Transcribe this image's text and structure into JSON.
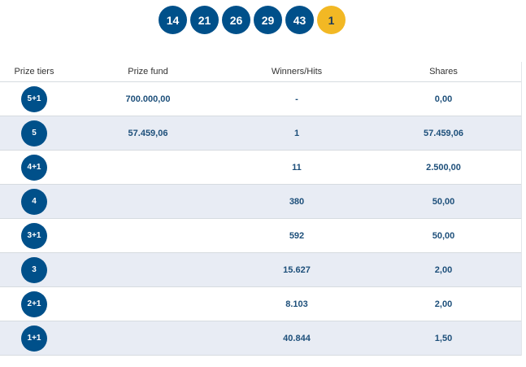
{
  "draw": {
    "numbers": [
      "14",
      "21",
      "26",
      "29",
      "43"
    ],
    "bonus": "1"
  },
  "table": {
    "headers": {
      "tier": "Prize tiers",
      "fund": "Prize fund",
      "winners": "Winners/Hits",
      "shares": "Shares"
    },
    "rows": [
      {
        "tier": "5+1",
        "fund": "700.000,00",
        "winners": "-",
        "shares": "0,00"
      },
      {
        "tier": "5",
        "fund": "57.459,06",
        "winners": "1",
        "shares": "57.459,06"
      },
      {
        "tier": "4+1",
        "fund": "",
        "winners": "11",
        "shares": "2.500,00"
      },
      {
        "tier": "4",
        "fund": "",
        "winners": "380",
        "shares": "50,00"
      },
      {
        "tier": "3+1",
        "fund": "",
        "winners": "592",
        "shares": "50,00"
      },
      {
        "tier": "3",
        "fund": "",
        "winners": "15.627",
        "shares": "2,00"
      },
      {
        "tier": "2+1",
        "fund": "",
        "winners": "8.103",
        "shares": "2,00"
      },
      {
        "tier": "1+1",
        "fund": "",
        "winners": "40.844",
        "shares": "1,50"
      }
    ]
  },
  "colors": {
    "ball": "#00508a",
    "bonus_ball": "#f2b824",
    "row_alt": "#e8ecf4",
    "value_text": "#1d4f7a"
  }
}
